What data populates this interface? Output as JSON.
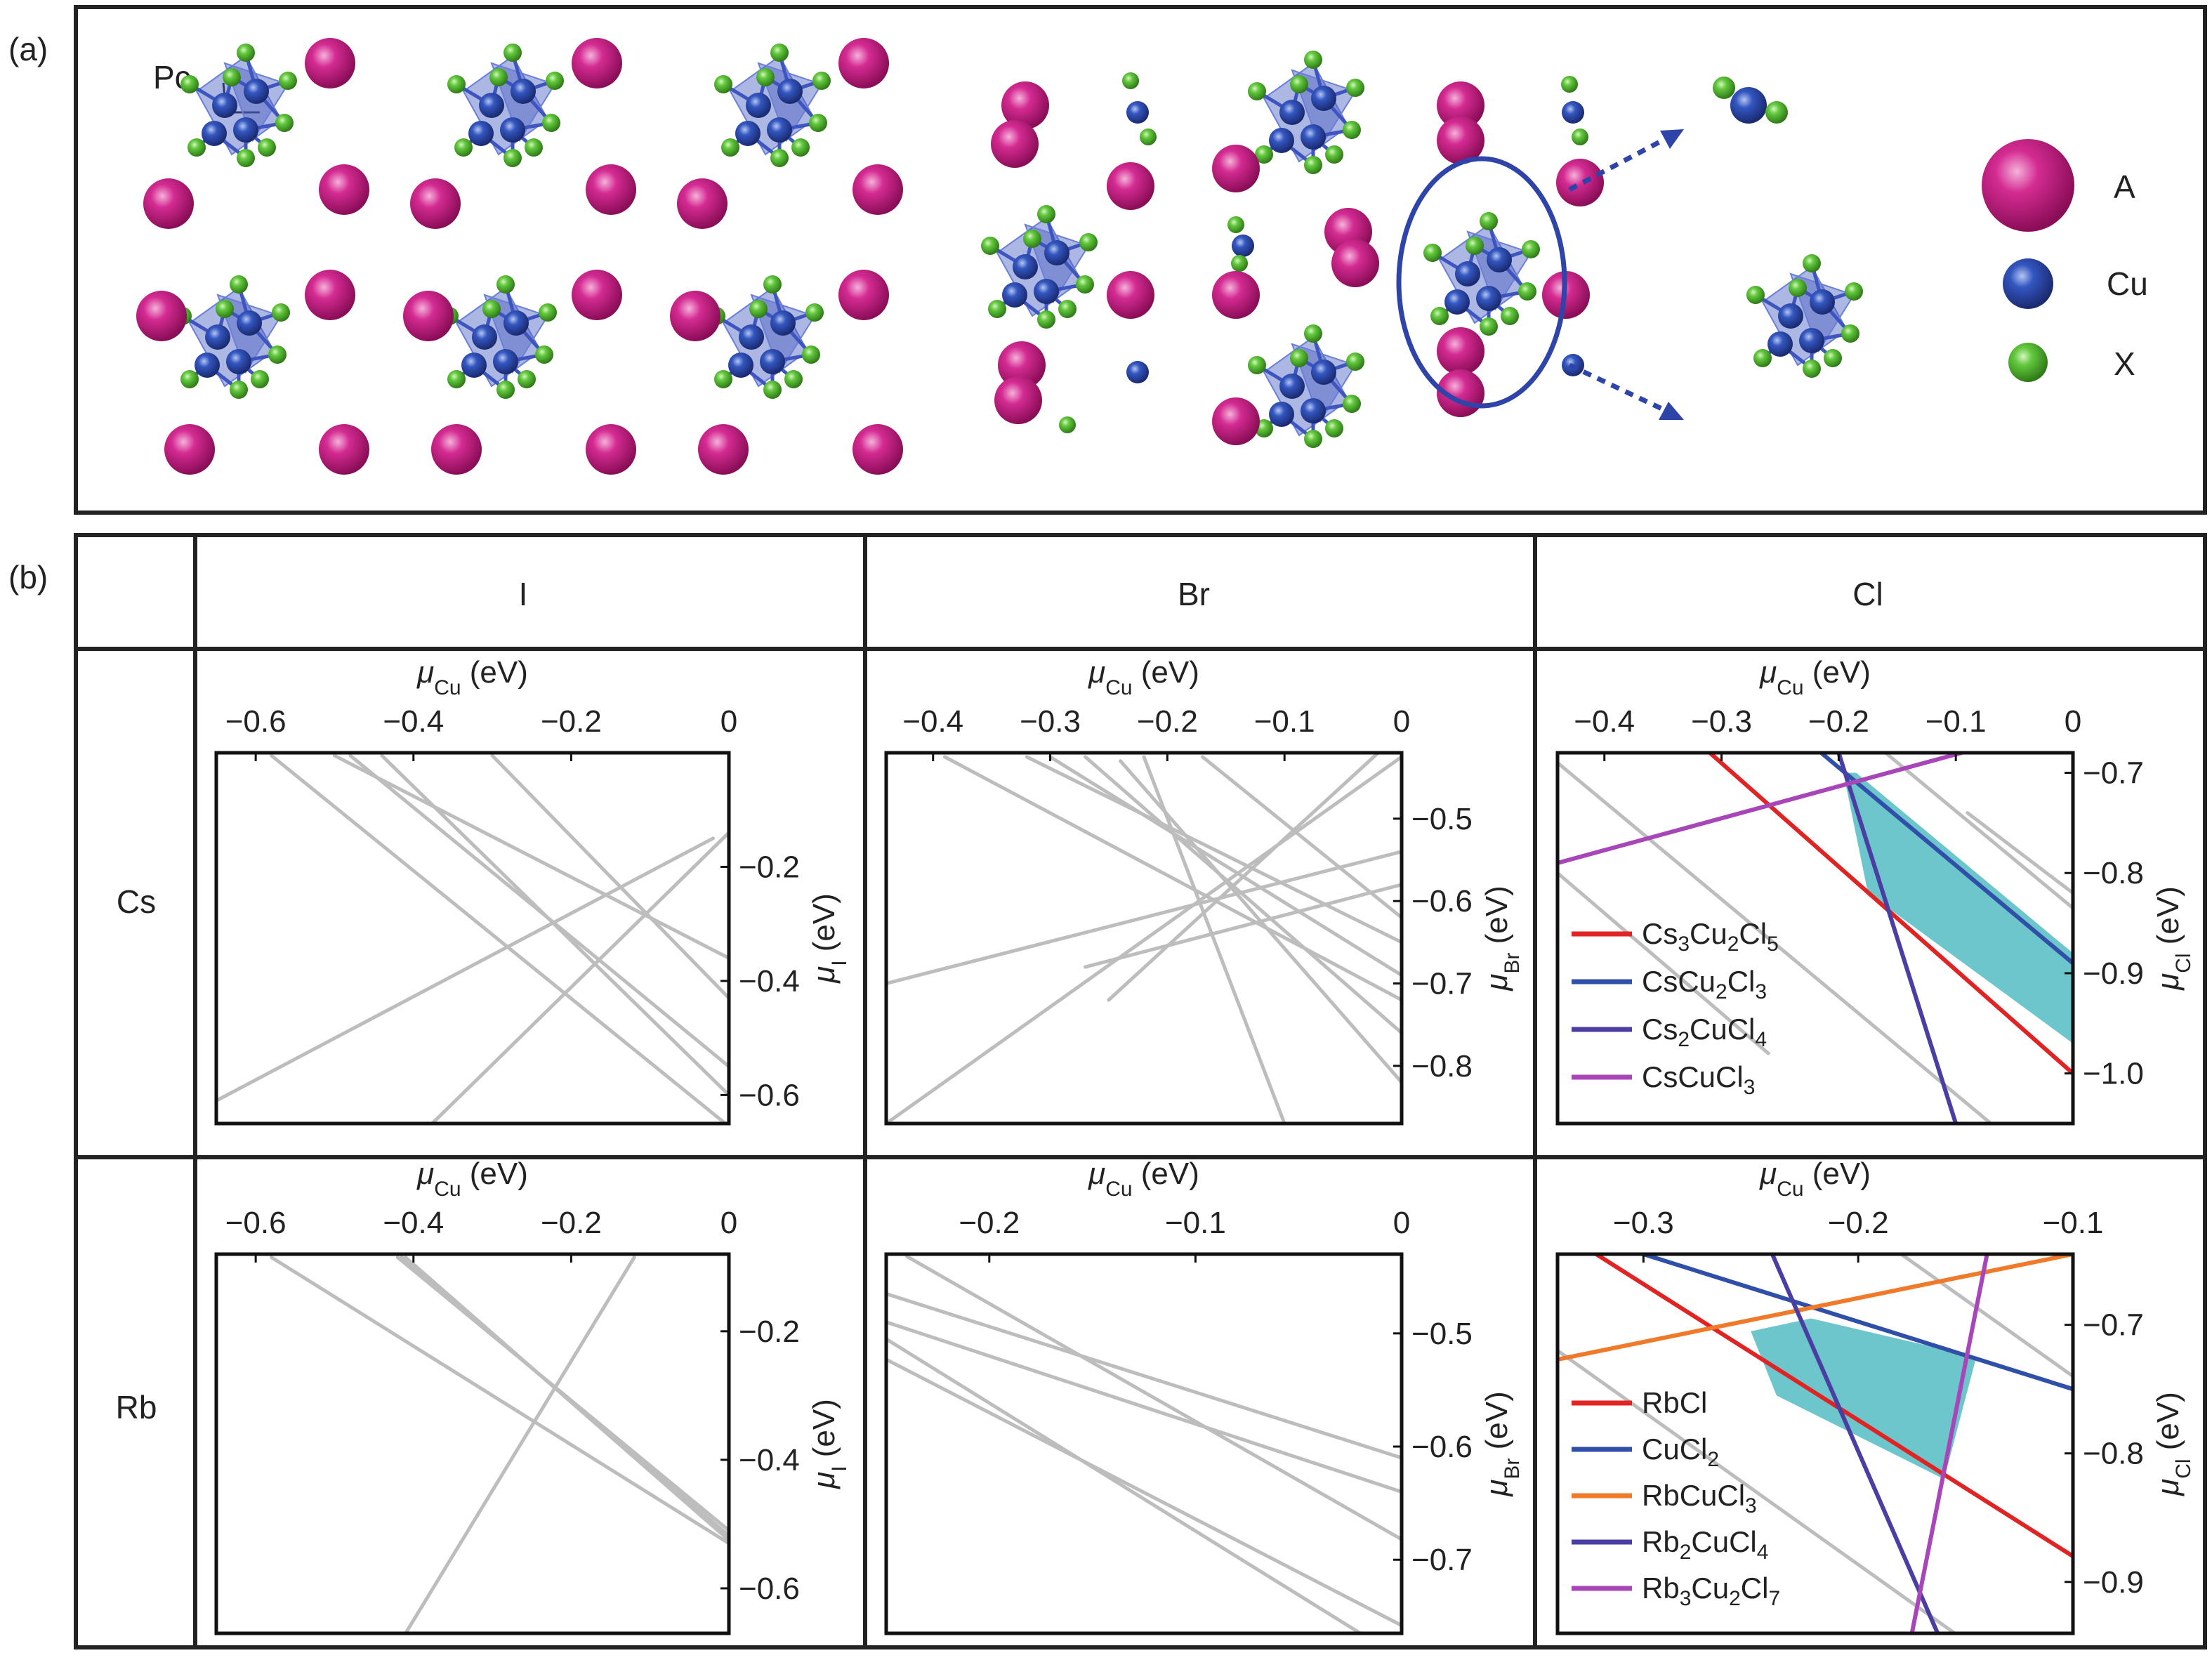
{
  "panel_a": {
    "label": "(a)",
    "structure_label": "Pc",
    "legend": [
      {
        "name": "A",
        "color": "#c2187a"
      },
      {
        "name": "Cu",
        "color": "#2e4aa8"
      },
      {
        "name": "X",
        "color": "#5cc63a"
      }
    ]
  },
  "panel_b": {
    "label": "(b)",
    "columns": [
      "I",
      "Br",
      "Cl"
    ],
    "rows": [
      "Cs",
      "Rb"
    ]
  },
  "colors": {
    "feasible_region": "#6cc6cc",
    "grey_line": "#bdbdbd",
    "red": "#e02424",
    "blue": "#2f4fa8",
    "indigo": "#4b3ea3",
    "magenta": "#a845b8",
    "orange": "#f07a2a"
  },
  "chart_data": [
    {
      "id": "Cs-I",
      "type": "line",
      "xlabel": "μ_Cu (eV)",
      "ylabel": "μ_I (eV)",
      "xlim": [
        -0.65,
        0
      ],
      "ylim": [
        -0.65,
        0
      ],
      "xticks": [
        "−0.6",
        "−0.4",
        "−0.2",
        "0"
      ],
      "xtick_vals": [
        -0.6,
        -0.4,
        -0.2,
        0
      ],
      "yticks": [
        "−0.2",
        "−0.4",
        "−0.6"
      ],
      "ytick_vals": [
        -0.2,
        -0.4,
        -0.6
      ],
      "series": [
        {
          "color": "#bdbdbd",
          "x": [
            -0.58,
            0
          ],
          "y": [
            -0.005,
            -0.655
          ]
        },
        {
          "color": "#bdbdbd",
          "x": [
            -0.5,
            0
          ],
          "y": [
            -0.005,
            -0.36
          ]
        },
        {
          "color": "#bdbdbd",
          "x": [
            -0.48,
            0
          ],
          "y": [
            -0.005,
            -0.55
          ]
        },
        {
          "color": "#bdbdbd",
          "x": [
            -0.44,
            0
          ],
          "y": [
            -0.005,
            -0.6
          ]
        },
        {
          "color": "#bdbdbd",
          "x": [
            -0.3,
            0
          ],
          "y": [
            -0.005,
            -0.43
          ]
        },
        {
          "color": "#bdbdbd",
          "x": [
            -0.65,
            -0.02
          ],
          "y": [
            -0.61,
            -0.15
          ]
        },
        {
          "color": "#bdbdbd",
          "x": [
            -0.38,
            0
          ],
          "y": [
            -0.655,
            -0.14
          ]
        }
      ]
    },
    {
      "id": "Cs-Br",
      "type": "line",
      "xlabel": "μ_Cu (eV)",
      "ylabel": "μ_Br (eV)",
      "xlim": [
        -0.44,
        0
      ],
      "ylim": [
        -0.87,
        -0.42
      ],
      "xticks": [
        "−0.4",
        "−0.3",
        "−0.2",
        "−0.1",
        "0"
      ],
      "xtick_vals": [
        -0.4,
        -0.3,
        -0.2,
        -0.1,
        0
      ],
      "yticks": [
        "−0.5",
        "−0.6",
        "−0.7",
        "−0.8"
      ],
      "ytick_vals": [
        -0.5,
        -0.6,
        -0.7,
        -0.8
      ],
      "series": [
        {
          "color": "#bdbdbd",
          "x": [
            -0.44,
            0
          ],
          "y": [
            -0.87,
            -0.425
          ]
        },
        {
          "color": "#bdbdbd",
          "x": [
            -0.44,
            0
          ],
          "y": [
            -0.7,
            -0.54
          ]
        },
        {
          "color": "#bdbdbd",
          "x": [
            -0.39,
            0
          ],
          "y": [
            -0.425,
            -0.72
          ]
        },
        {
          "color": "#bdbdbd",
          "x": [
            -0.32,
            0
          ],
          "y": [
            -0.425,
            -0.65
          ]
        },
        {
          "color": "#bdbdbd",
          "x": [
            -0.3,
            0
          ],
          "y": [
            -0.425,
            -0.69
          ]
        },
        {
          "color": "#bdbdbd",
          "x": [
            -0.27,
            0
          ],
          "y": [
            -0.425,
            -0.76
          ]
        },
        {
          "color": "#bdbdbd",
          "x": [
            -0.17,
            0
          ],
          "y": [
            -0.425,
            -0.62
          ]
        },
        {
          "color": "#bdbdbd",
          "x": [
            -0.24,
            0
          ],
          "y": [
            -0.43,
            -0.82
          ]
        },
        {
          "color": "#bdbdbd",
          "x": [
            -0.22,
            -0.1
          ],
          "y": [
            -0.425,
            -0.87
          ]
        },
        {
          "color": "#bdbdbd",
          "x": [
            -0.25,
            -0.02
          ],
          "y": [
            -0.72,
            -0.42
          ]
        },
        {
          "color": "#bdbdbd",
          "x": [
            -0.27,
            0
          ],
          "y": [
            -0.68,
            -0.58
          ]
        }
      ]
    },
    {
      "id": "Cs-Cl",
      "type": "line",
      "xlabel": "μ_Cu (eV)",
      "ylabel": "μ_Cl (eV)",
      "xlim": [
        -0.44,
        0
      ],
      "ylim": [
        -1.05,
        -0.68
      ],
      "xticks": [
        "−0.4",
        "−0.3",
        "−0.2",
        "−0.1",
        "0"
      ],
      "xtick_vals": [
        -0.4,
        -0.3,
        -0.2,
        -0.1,
        0
      ],
      "yticks": [
        "−0.7",
        "−0.8",
        "−0.9",
        "−1.0"
      ],
      "ytick_vals": [
        -0.7,
        -0.8,
        -0.9,
        -1.0
      ],
      "region": {
        "color": "#6cc6cc",
        "x": [
          -0.196,
          -0.185,
          0,
          0,
          -0.175
        ],
        "y": [
          -0.7,
          -0.7,
          -0.88,
          -0.97,
          -0.82
        ]
      },
      "series": [
        {
          "color": "#bdbdbd",
          "x": [
            -0.44,
            -0.07
          ],
          "y": [
            -0.69,
            -1.05
          ]
        },
        {
          "color": "#bdbdbd",
          "x": [
            -0.44,
            -0.26
          ],
          "y": [
            -0.8,
            -0.98
          ]
        },
        {
          "color": "#bdbdbd",
          "x": [
            -0.16,
            0
          ],
          "y": [
            -0.68,
            -0.835
          ]
        },
        {
          "color": "#bdbdbd",
          "x": [
            -0.09,
            0
          ],
          "y": [
            -0.74,
            -0.82
          ]
        },
        {
          "name": "Cs3Cu2Cl5",
          "color": "#e02424",
          "x": [
            -0.31,
            0
          ],
          "y": [
            -0.68,
            -1.0
          ]
        },
        {
          "name": "CsCu2Cl3",
          "color": "#2f4fa8",
          "x": [
            -0.215,
            0
          ],
          "y": [
            -0.68,
            -0.89
          ]
        },
        {
          "name": "Cs2CuCl4",
          "color": "#4b3ea3",
          "x": [
            -0.2,
            -0.1
          ],
          "y": [
            -0.68,
            -1.05
          ]
        },
        {
          "name": "CsCuCl3",
          "color": "#a845b8",
          "x": [
            -0.44,
            -0.095
          ],
          "y": [
            -0.79,
            -0.68
          ]
        }
      ],
      "legend": [
        {
          "color": "#e02424",
          "formula": [
            [
              "Cs",
              ""
            ],
            [
              "3",
              "sub"
            ],
            [
              "Cu",
              ""
            ],
            [
              "2",
              "sub"
            ],
            [
              "Cl",
              ""
            ],
            [
              "5",
              "sub"
            ]
          ]
        },
        {
          "color": "#2f4fa8",
          "formula": [
            [
              "CsCu",
              ""
            ],
            [
              "2",
              "sub"
            ],
            [
              "Cl",
              ""
            ],
            [
              "3",
              "sub"
            ]
          ]
        },
        {
          "color": "#4b3ea3",
          "formula": [
            [
              "Cs",
              ""
            ],
            [
              "2",
              "sub"
            ],
            [
              "CuCl",
              ""
            ],
            [
              "4",
              "sub"
            ]
          ]
        },
        {
          "color": "#a845b8",
          "formula": [
            [
              "CsCuCl",
              ""
            ],
            [
              "3",
              "sub"
            ]
          ]
        }
      ]
    },
    {
      "id": "Rb-I",
      "type": "line",
      "xlabel": "μ_Cu (eV)",
      "ylabel": "μ_I (eV)",
      "xlim": [
        -0.65,
        0
      ],
      "ylim": [
        -0.67,
        -0.08
      ],
      "xticks": [
        "−0.6",
        "−0.4",
        "−0.2",
        "0"
      ],
      "xtick_vals": [
        -0.6,
        -0.4,
        -0.2,
        0
      ],
      "yticks": [
        "−0.2",
        "−0.4",
        "−0.6"
      ],
      "ytick_vals": [
        -0.2,
        -0.4,
        -0.6
      ],
      "series": [
        {
          "color": "#bdbdbd",
          "x": [
            -0.58,
            0
          ],
          "y": [
            -0.085,
            -0.53
          ]
        },
        {
          "color": "#bdbdbd",
          "x": [
            -0.42,
            0
          ],
          "y": [
            -0.085,
            -0.51
          ]
        },
        {
          "color": "#bdbdbd",
          "x": [
            -0.415,
            0
          ],
          "y": [
            -0.085,
            -0.518
          ]
        },
        {
          "color": "#bdbdbd",
          "x": [
            -0.41,
            0
          ],
          "y": [
            -0.085,
            -0.525
          ]
        },
        {
          "color": "#bdbdbd",
          "x": [
            -0.41,
            -0.12
          ],
          "y": [
            -0.67,
            -0.085
          ]
        }
      ]
    },
    {
      "id": "Rb-Br",
      "type": "line",
      "xlabel": "μ_Cu (eV)",
      "ylabel": "μ_Br (eV)",
      "xlim": [
        -0.25,
        0
      ],
      "ylim": [
        -0.765,
        -0.43
      ],
      "xticks": [
        "−0.2",
        "−0.1",
        "0"
      ],
      "xtick_vals": [
        -0.2,
        -0.1,
        0
      ],
      "yticks": [
        "−0.5",
        "−0.6",
        "−0.7"
      ],
      "ytick_vals": [
        -0.5,
        -0.6,
        -0.7
      ],
      "series": [
        {
          "color": "#bdbdbd",
          "x": [
            -0.25,
            0
          ],
          "y": [
            -0.465,
            -0.61
          ]
        },
        {
          "color": "#bdbdbd",
          "x": [
            -0.25,
            0
          ],
          "y": [
            -0.49,
            -0.64
          ]
        },
        {
          "color": "#bdbdbd",
          "x": [
            -0.24,
            0
          ],
          "y": [
            -0.432,
            -0.682
          ]
        },
        {
          "color": "#bdbdbd",
          "x": [
            -0.25,
            -0.02
          ],
          "y": [
            -0.505,
            -0.765
          ]
        },
        {
          "color": "#bdbdbd",
          "x": [
            -0.25,
            0
          ],
          "y": [
            -0.523,
            -0.758
          ]
        }
      ]
    },
    {
      "id": "Rb-Cl",
      "type": "line",
      "xlabel": "μ_Cu (eV)",
      "ylabel": "μ_Cl (eV)",
      "xlim": [
        -0.34,
        -0.1
      ],
      "ylim": [
        -0.94,
        -0.645
      ],
      "xticks": [
        "−0.3",
        "−0.2",
        "−0.1"
      ],
      "xtick_vals": [
        -0.3,
        -0.2,
        -0.1
      ],
      "yticks": [
        "−0.7",
        "−0.8",
        "−0.9"
      ],
      "ytick_vals": [
        -0.7,
        -0.8,
        -0.9
      ],
      "region": {
        "color": "#6cc6cc",
        "x": [
          -0.25,
          -0.222,
          -0.145,
          -0.16,
          -0.238
        ],
        "y": [
          -0.705,
          -0.695,
          -0.725,
          -0.82,
          -0.755
        ]
      },
      "series": [
        {
          "color": "#bdbdbd",
          "x": [
            -0.34,
            -0.155
          ],
          "y": [
            -0.72,
            -0.94
          ]
        },
        {
          "color": "#bdbdbd",
          "x": [
            -0.18,
            -0.1
          ],
          "y": [
            -0.645,
            -0.74
          ]
        },
        {
          "name": "RbCl",
          "color": "#e02424",
          "x": [
            -0.322,
            -0.1
          ],
          "y": [
            -0.645,
            -0.88
          ]
        },
        {
          "name": "CuCl2",
          "color": "#2f4fa8",
          "x": [
            -0.3,
            -0.1
          ],
          "y": [
            -0.645,
            -0.75
          ]
        },
        {
          "name": "RbCuCl3",
          "color": "#f07a2a",
          "x": [
            -0.34,
            -0.1
          ],
          "y": [
            -0.727,
            -0.645
          ]
        },
        {
          "name": "Rb2CuCl4",
          "color": "#4b3ea3",
          "x": [
            -0.24,
            -0.163
          ],
          "y": [
            -0.645,
            -0.94
          ]
        },
        {
          "name": "Rb3Cu2Cl7",
          "color": "#a845b8",
          "x": [
            -0.175,
            -0.14
          ],
          "y": [
            -0.94,
            -0.645
          ]
        }
      ],
      "legend": [
        {
          "color": "#e02424",
          "formula": [
            [
              "RbCl",
              ""
            ]
          ]
        },
        {
          "color": "#2f4fa8",
          "formula": [
            [
              "CuCl",
              ""
            ],
            [
              "2",
              "sub"
            ]
          ]
        },
        {
          "color": "#f07a2a",
          "formula": [
            [
              "RbCuCl",
              ""
            ],
            [
              "3",
              "sub"
            ]
          ]
        },
        {
          "color": "#4b3ea3",
          "formula": [
            [
              "Rb",
              ""
            ],
            [
              "2",
              "sub"
            ],
            [
              "CuCl",
              ""
            ],
            [
              "4",
              "sub"
            ]
          ]
        },
        {
          "color": "#a845b8",
          "formula": [
            [
              "Rb",
              ""
            ],
            [
              "3",
              "sub"
            ],
            [
              "Cu",
              ""
            ],
            [
              "2",
              "sub"
            ],
            [
              "Cl",
              ""
            ],
            [
              "7",
              "sub"
            ]
          ]
        }
      ]
    }
  ]
}
